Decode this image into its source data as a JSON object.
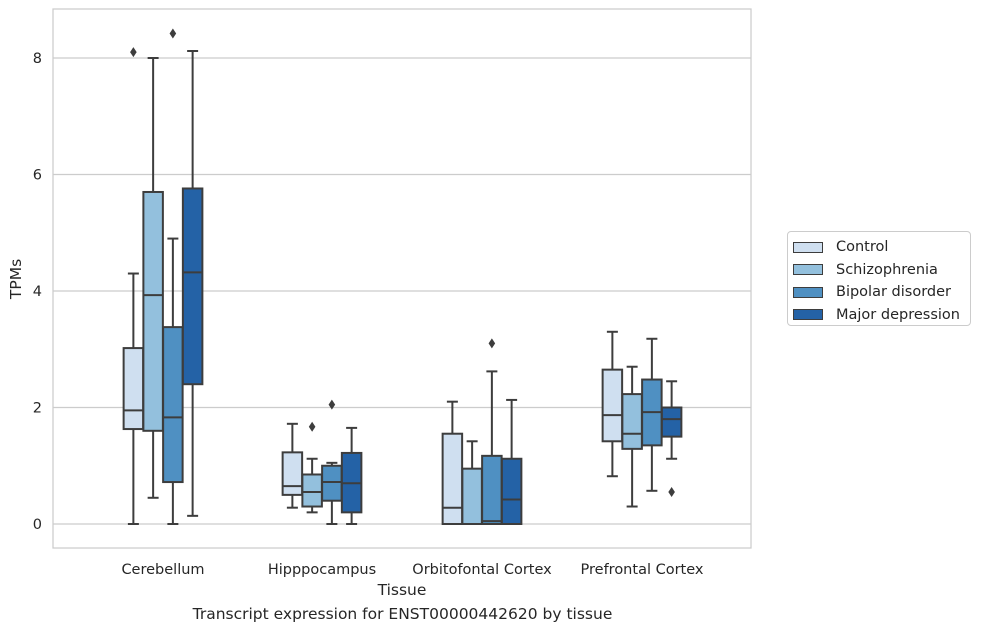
{
  "caption": "Transcript expression for ENST00000442620 by tissue",
  "colors": {
    "Control": "#cfdff0",
    "Schizophrenia": "#93c0dd",
    "Bipolar disorder": "#4f90c2",
    "Major depression": "#2462a6",
    "edge": "#3d3d3d",
    "grid": "#cccccc"
  },
  "chart_data": {
    "type": "box",
    "xlabel": "Tissue",
    "ylabel": "TPMs",
    "ylim": [
      -0.4,
      8.85
    ],
    "yticks": [
      0,
      2,
      4,
      6,
      8
    ],
    "grid": true,
    "legend_position": "right",
    "categories": [
      "Cerebellum",
      "Hipppocampus",
      "Orbitofontal Cortex",
      "Prefrontal Cortex"
    ],
    "series": [
      {
        "name": "Control",
        "boxes": [
          {
            "min": 0,
            "q1": 1.63,
            "median": 1.95,
            "q3": 3.02,
            "max": 4.3,
            "outliers": [
              8.1
            ]
          },
          {
            "min": 0.28,
            "q1": 0.5,
            "median": 0.65,
            "q3": 1.23,
            "max": 1.72,
            "outliers": []
          },
          {
            "min": 0,
            "q1": 0,
            "median": 0.28,
            "q3": 1.55,
            "max": 2.1,
            "outliers": []
          },
          {
            "min": 0.82,
            "q1": 1.42,
            "median": 1.87,
            "q3": 2.65,
            "max": 3.3,
            "outliers": []
          }
        ]
      },
      {
        "name": "Schizophrenia",
        "boxes": [
          {
            "min": 0.45,
            "q1": 1.6,
            "median": 3.93,
            "q3": 5.7,
            "max": 8.0,
            "outliers": []
          },
          {
            "min": 0.2,
            "q1": 0.3,
            "median": 0.55,
            "q3": 0.85,
            "max": 1.12,
            "outliers": [
              1.67
            ]
          },
          {
            "min": 0,
            "q1": 0,
            "median": 0,
            "q3": 0.95,
            "max": 1.42,
            "outliers": []
          },
          {
            "min": 0.3,
            "q1": 1.29,
            "median": 1.55,
            "q3": 2.23,
            "max": 2.7,
            "outliers": []
          }
        ]
      },
      {
        "name": "Bipolar disorder",
        "boxes": [
          {
            "min": 0,
            "q1": 0.72,
            "median": 1.83,
            "q3": 3.38,
            "max": 4.9,
            "outliers": [
              8.42
            ]
          },
          {
            "min": 0,
            "q1": 0.4,
            "median": 0.72,
            "q3": 1.0,
            "max": 1.05,
            "outliers": [
              2.05
            ]
          },
          {
            "min": 0,
            "q1": 0,
            "median": 0.05,
            "q3": 1.17,
            "max": 2.62,
            "outliers": [
              3.1
            ]
          },
          {
            "min": 0.57,
            "q1": 1.35,
            "median": 1.92,
            "q3": 2.48,
            "max": 3.18,
            "outliers": []
          }
        ]
      },
      {
        "name": "Major depression",
        "boxes": [
          {
            "min": 0.14,
            "q1": 2.4,
            "median": 4.32,
            "q3": 5.76,
            "max": 8.12,
            "outliers": []
          },
          {
            "min": 0,
            "q1": 0.2,
            "median": 0.7,
            "q3": 1.22,
            "max": 1.65,
            "outliers": []
          },
          {
            "min": 0,
            "q1": 0,
            "median": 0.42,
            "q3": 1.12,
            "max": 2.13,
            "outliers": []
          },
          {
            "min": 1.12,
            "q1": 1.5,
            "median": 1.8,
            "q3": 2.0,
            "max": 2.45,
            "outliers": [
              0.55
            ]
          }
        ]
      }
    ]
  }
}
